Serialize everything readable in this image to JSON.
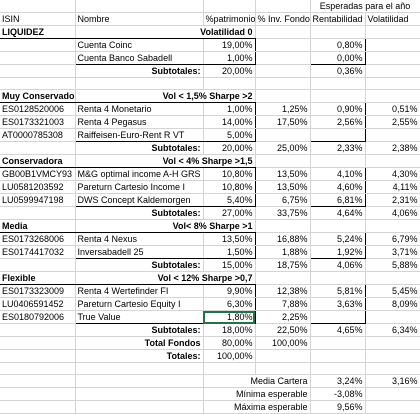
{
  "header": {
    "group_label": "Esperadas para el año",
    "columns": [
      "ISIN",
      "Nombre",
      "%patrimonio",
      "% Inv. Fondo",
      "Rentabilidad",
      "Volatilidad"
    ]
  },
  "liquidez": {
    "title": "LIQUIDEZ",
    "meta": "Volatilidad 0",
    "rows": [
      {
        "isin": "",
        "nombre": "Cuenta Coinc",
        "pat": "19,00%",
        "inv": "",
        "rent": "0,80%",
        "vol": ""
      },
      {
        "isin": "",
        "nombre": "Cuenta Banco Sabadell",
        "pat": "1,00%",
        "inv": "",
        "rent": "0,00%",
        "vol": ""
      }
    ],
    "subtotal": {
      "label": "Subtotales:",
      "pat": "20,00%",
      "inv": "",
      "rent": "0,36%",
      "vol": ""
    }
  },
  "muy_conservador": {
    "title": "Muy Conservador",
    "meta": "Vol < 1,5% Sharpe >2",
    "rows": [
      {
        "isin": "ES0128520006",
        "nombre": "Renta 4 Monetario",
        "pat": "1,00%",
        "inv": "1,25%",
        "rent": "0,90%",
        "vol": "0,51%"
      },
      {
        "isin": "ES0173321003",
        "nombre": "Renta 4 Pegasus",
        "pat": "14,00%",
        "inv": "17,50%",
        "rent": "2,56%",
        "vol": "2,55%"
      },
      {
        "isin": "AT0000785308",
        "nombre": "Raiffeisen-Euro-Rent R VT",
        "pat": "5,00%",
        "inv": "",
        "rent": "",
        "vol": ""
      }
    ],
    "subtotal": {
      "label": "Subtotales:",
      "pat": "20,00%",
      "inv": "25,00%",
      "rent": "2,33%",
      "vol": "2,38%"
    }
  },
  "conservadora": {
    "title": "Conservadora",
    "meta": "Vol < 4% Sharpe >1,5",
    "rows": [
      {
        "isin": "GB00B1VMCY93",
        "nombre": "M&G optimal income A-H GRS",
        "pat": "10,80%",
        "inv": "13,50%",
        "rent": "4,10%",
        "vol": "4,30%"
      },
      {
        "isin": "LU0581203592",
        "nombre": "Pareturn Cartesio Income I",
        "pat": "10,80%",
        "inv": "13,50%",
        "rent": "4,60%",
        "vol": "4,11%"
      },
      {
        "isin": "LU0599947198",
        "nombre": "DWS Concept Kaldemorgen",
        "pat": "5,40%",
        "inv": "6,75%",
        "rent": "6,81%",
        "vol": "2,31%"
      }
    ],
    "subtotal": {
      "label": "Subtotales:",
      "pat": "27,00%",
      "inv": "33,75%",
      "rent": "4,64%",
      "vol": "4,06%"
    }
  },
  "media": {
    "title": "Media",
    "meta": "Vol< 8% Sharpe >1",
    "rows": [
      {
        "isin": "ES0173268006",
        "nombre": "Renta 4 Nexus",
        "pat": "13,50%",
        "inv": "16,88%",
        "rent": "5,24%",
        "vol": "6,79%"
      },
      {
        "isin": "ES0174417032",
        "nombre": "Inversabadell 25",
        "pat": "1,50%",
        "inv": "1,88%",
        "rent": "1,92%",
        "vol": "3,71%"
      }
    ],
    "subtotal": {
      "label": "Subtotales:",
      "pat": "15,00%",
      "inv": "18,75%",
      "rent": "4,06%",
      "vol": "5,88%"
    }
  },
  "flexible": {
    "title": "Flexible",
    "meta": "Vol < 12% Sharpe >0,7",
    "rows": [
      {
        "isin": "ES0173323009",
        "nombre": "Renta 4 Wertefinder FI",
        "pat": "9,90%",
        "inv": "12,38%",
        "rent": "5,81%",
        "vol": "5,45%"
      },
      {
        "isin": "LU0406591452",
        "nombre": "Pareturn Cartesio Equity I",
        "pat": "6,30%",
        "inv": "7,88%",
        "rent": "3,63%",
        "vol": "8,09%"
      },
      {
        "isin": "ES0180792006",
        "nombre": "True Value",
        "pat": "1,80%",
        "inv": "2,25%",
        "rent": "",
        "vol": ""
      }
    ],
    "subtotal": {
      "label": "Subtotales:",
      "pat": "18,00%",
      "inv": "22,50%",
      "rent": "4,65%",
      "vol": "6,34%"
    }
  },
  "totals": {
    "fondos_label": "Total Fondos",
    "fondos_pat": "80,00%",
    "fondos_inv": "100,00%",
    "totales_label": "Totales:",
    "totales_pat": "100,00%"
  },
  "summary": {
    "media_label": "Media Cartera",
    "media_rent": "3,24%",
    "media_vol": "3,16%",
    "min_label": "Mínima esperable",
    "min_val": "-3,08%",
    "max_label": "Máxima esperable",
    "max_val": "9,56%"
  }
}
